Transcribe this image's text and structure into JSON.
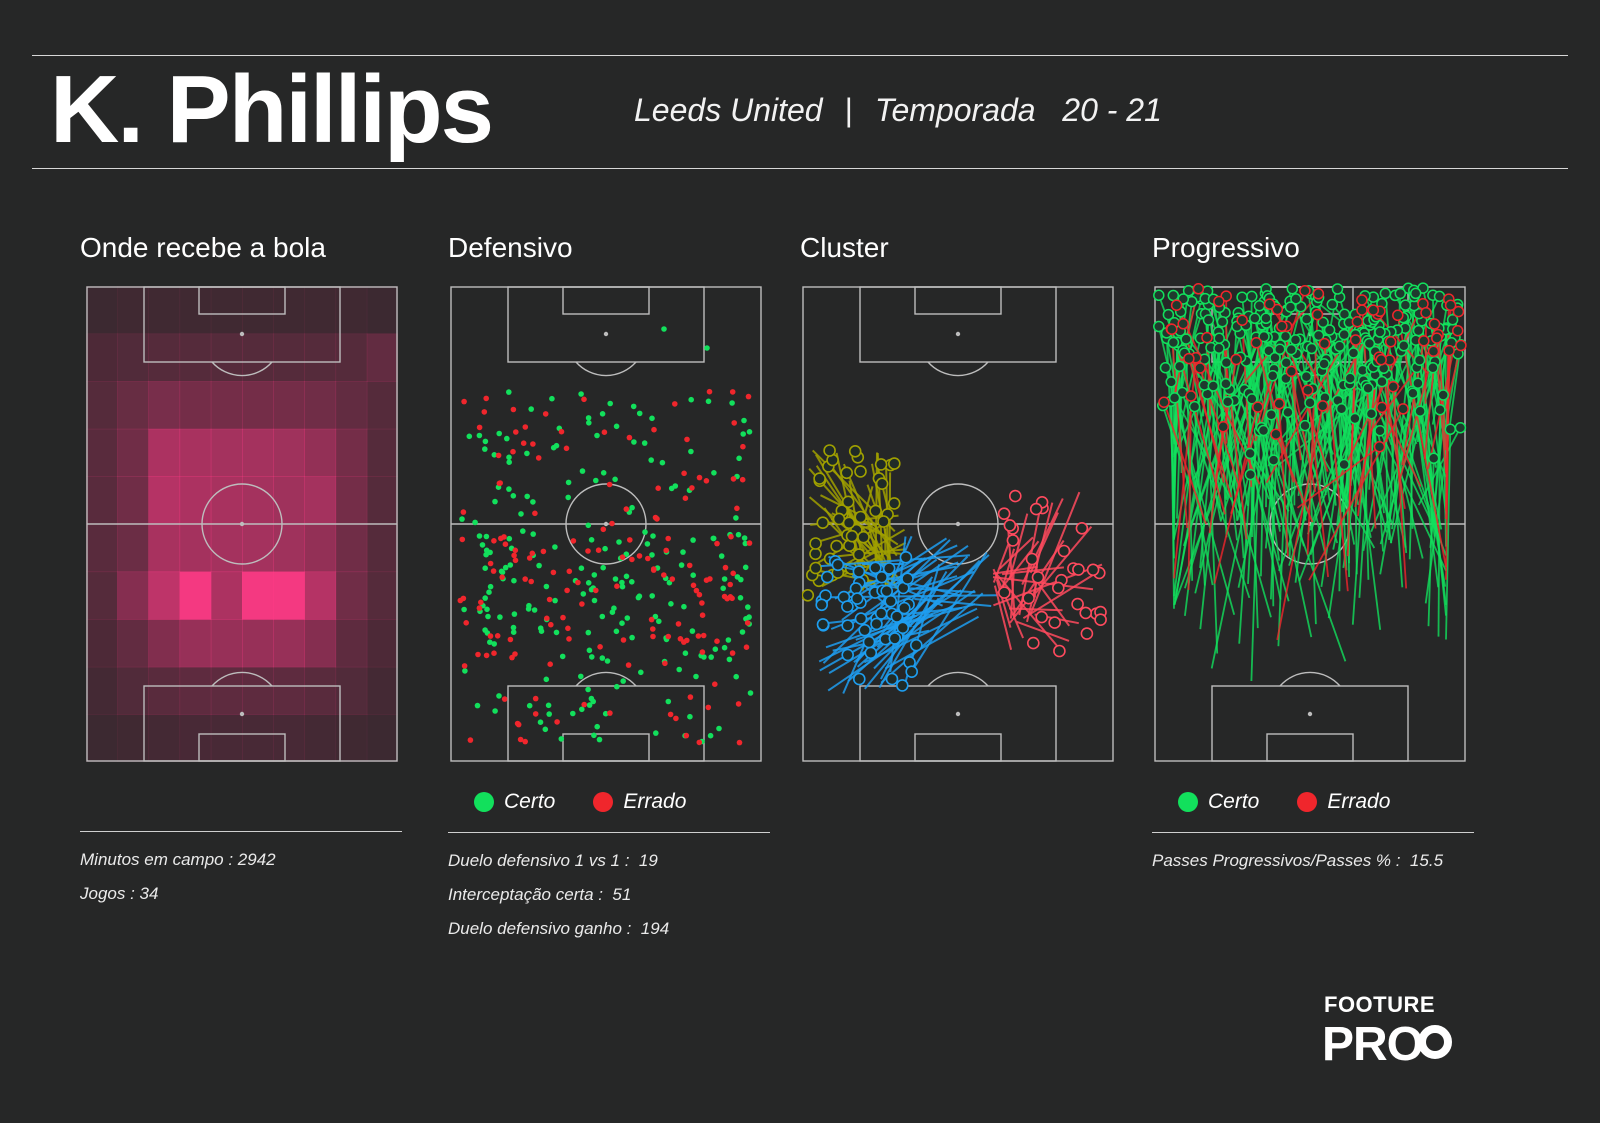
{
  "header": {
    "player": "K. Phillips",
    "team": "Leeds United",
    "separator": "|",
    "season_label": "Temporada",
    "season": "20 - 21"
  },
  "panels": [
    {
      "title": "Onde recebe a bola"
    },
    {
      "title": "Defensivo"
    },
    {
      "title": "Cluster"
    },
    {
      "title": "Progressivo"
    }
  ],
  "legend": {
    "certo": "Certo",
    "errado": "Errado",
    "certo_color": "#12e05c",
    "errado_color": "#f0262c"
  },
  "stats": {
    "minutes": "Minutos em campo : 2942",
    "games": "Jogos : 34",
    "duel_1v1": "Duelo defensivo 1 vs 1 :  19",
    "interceptions": "Interceptação certa :  51",
    "duels_won": "Duelo defensivo ganho :  194",
    "progressive": "Passes Progressivos/Passes % :  15.5"
  },
  "logo": {
    "line1": "FOOTURE",
    "line2": "PRO"
  },
  "chart_data": [
    {
      "type": "heatmap",
      "cols": 10,
      "rows": 10,
      "values": [
        [
          0.1,
          0.12,
          0.12,
          0.12,
          0.12,
          0.12,
          0.12,
          0.12,
          0.12,
          0.1
        ],
        [
          0.18,
          0.2,
          0.22,
          0.22,
          0.22,
          0.22,
          0.22,
          0.22,
          0.22,
          0.28
        ],
        [
          0.22,
          0.3,
          0.38,
          0.36,
          0.36,
          0.36,
          0.36,
          0.34,
          0.28,
          0.22
        ],
        [
          0.24,
          0.34,
          0.62,
          0.6,
          0.58,
          0.58,
          0.56,
          0.5,
          0.36,
          0.22
        ],
        [
          0.24,
          0.34,
          0.66,
          0.62,
          0.6,
          0.58,
          0.56,
          0.58,
          0.36,
          0.22
        ],
        [
          0.24,
          0.32,
          0.6,
          0.58,
          0.58,
          0.58,
          0.56,
          0.5,
          0.34,
          0.22
        ],
        [
          0.22,
          0.44,
          0.7,
          0.95,
          0.62,
          0.95,
          0.95,
          0.66,
          0.34,
          0.22
        ],
        [
          0.18,
          0.28,
          0.42,
          0.52,
          0.52,
          0.52,
          0.52,
          0.44,
          0.26,
          0.18
        ],
        [
          0.14,
          0.2,
          0.24,
          0.26,
          0.26,
          0.26,
          0.26,
          0.24,
          0.2,
          0.14
        ],
        [
          0.1,
          0.12,
          0.14,
          0.16,
          0.16,
          0.16,
          0.16,
          0.14,
          0.12,
          0.1
        ]
      ],
      "color": "#ff3a86"
    },
    {
      "type": "scatter",
      "series": [
        {
          "name": "Certo",
          "color": "#12e05c",
          "count": 225
        },
        {
          "name": "Errado",
          "color": "#f0262c",
          "count": 160
        }
      ]
    },
    {
      "type": "scatter",
      "series": [
        {
          "color": "#a0a000",
          "count": 45
        },
        {
          "color": "#1e9ef0",
          "count": 50
        },
        {
          "color": "#ff4a5e",
          "count": 30
        }
      ]
    },
    {
      "type": "scatter",
      "series": [
        {
          "name": "Certo",
          "color": "#12e05c",
          "count": 260
        },
        {
          "name": "Errado",
          "color": "#f0262c",
          "count": 60
        }
      ]
    }
  ]
}
